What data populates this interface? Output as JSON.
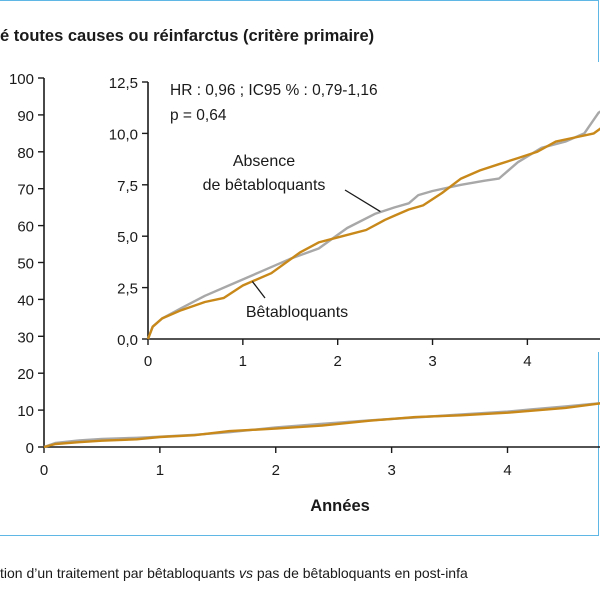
{
  "title": "é toutes causes ou réinfarctus (critère primaire)",
  "caption": {
    "part1": "tion d’un traitement par bêtabloquants ",
    "italic": "vs",
    "part2": " pas de bêtabloquants en post-infa"
  },
  "colors": {
    "frame": "#5fb7e5",
    "series_no_bb": "#a8a8a8",
    "series_bb": "#c8891a",
    "axis": "#1a1a1a"
  },
  "chart_data": [
    {
      "type": "line",
      "panel": "main",
      "xlabel": "Années",
      "ylabel": "",
      "xlim": [
        0,
        4.85
      ],
      "ylim": [
        0,
        100
      ],
      "x_ticks": [
        "0",
        "1",
        "2",
        "3",
        "4"
      ],
      "y_ticks": [
        "0",
        "10",
        "20",
        "30",
        "40",
        "50",
        "60",
        "70",
        "80",
        "90",
        "100"
      ],
      "series": [
        {
          "key": "no_bb",
          "x": [
            0,
            0.1,
            0.3,
            0.5,
            0.8,
            1.0,
            1.3,
            1.6,
            2.0,
            2.4,
            2.8,
            3.2,
            3.6,
            4.0,
            4.2,
            4.5,
            4.85
          ],
          "y": [
            0,
            1.1,
            1.8,
            2.2,
            2.5,
            2.8,
            3.3,
            4.0,
            5.3,
            6.3,
            7.2,
            8.0,
            8.8,
            9.6,
            10.2,
            11.0,
            12.0
          ]
        },
        {
          "key": "bb",
          "x": [
            0,
            0.1,
            0.3,
            0.5,
            0.8,
            1.0,
            1.3,
            1.6,
            2.0,
            2.4,
            2.8,
            3.2,
            3.6,
            4.0,
            4.2,
            4.5,
            4.85
          ],
          "y": [
            0,
            0.8,
            1.3,
            1.7,
            2.1,
            2.7,
            3.2,
            4.3,
            5.0,
            5.8,
            7.1,
            8.1,
            8.6,
            9.3,
            9.8,
            10.6,
            12.0
          ]
        }
      ]
    },
    {
      "type": "line",
      "panel": "inset",
      "annotation_line1": "HR : 0,96 ; IC95 % : 0,79-1,16",
      "annotation_line2": "p = 0,64",
      "xlim": [
        0,
        4.85
      ],
      "ylim": [
        0,
        12.5
      ],
      "x_ticks": [
        "0",
        "1",
        "2",
        "3",
        "4"
      ],
      "y_ticks": [
        "0,0",
        "2,5",
        "5,0",
        "7,5",
        "10,0",
        "12,5"
      ],
      "series": [
        {
          "key": "no_bb",
          "name_line1": "Absence",
          "name_line2": "de bêtabloquants",
          "x": [
            0,
            0.05,
            0.15,
            0.35,
            0.6,
            0.9,
            1.2,
            1.5,
            1.8,
            2.1,
            2.4,
            2.6,
            2.75,
            2.85,
            3.0,
            3.3,
            3.55,
            3.7,
            3.9,
            4.15,
            4.4,
            4.6,
            4.75,
            4.85
          ],
          "y": [
            0,
            0.6,
            1.0,
            1.5,
            2.1,
            2.7,
            3.3,
            3.9,
            4.4,
            5.4,
            6.1,
            6.4,
            6.6,
            7.0,
            7.2,
            7.5,
            7.7,
            7.8,
            8.6,
            9.3,
            9.6,
            10.0,
            11.0,
            11.3
          ]
        },
        {
          "key": "bb",
          "name": "Bêtabloquants",
          "x": [
            0,
            0.05,
            0.15,
            0.35,
            0.6,
            0.8,
            1.0,
            1.3,
            1.6,
            1.8,
            2.05,
            2.3,
            2.5,
            2.6,
            2.75,
            2.9,
            3.1,
            3.3,
            3.5,
            3.7,
            3.9,
            4.1,
            4.3,
            4.5,
            4.7,
            4.85
          ],
          "y": [
            0,
            0.6,
            1.0,
            1.4,
            1.8,
            2.0,
            2.6,
            3.2,
            4.2,
            4.7,
            5.0,
            5.3,
            5.8,
            6.0,
            6.3,
            6.5,
            7.1,
            7.8,
            8.2,
            8.5,
            8.8,
            9.1,
            9.6,
            9.8,
            10.0,
            10.5
          ]
        }
      ]
    }
  ]
}
